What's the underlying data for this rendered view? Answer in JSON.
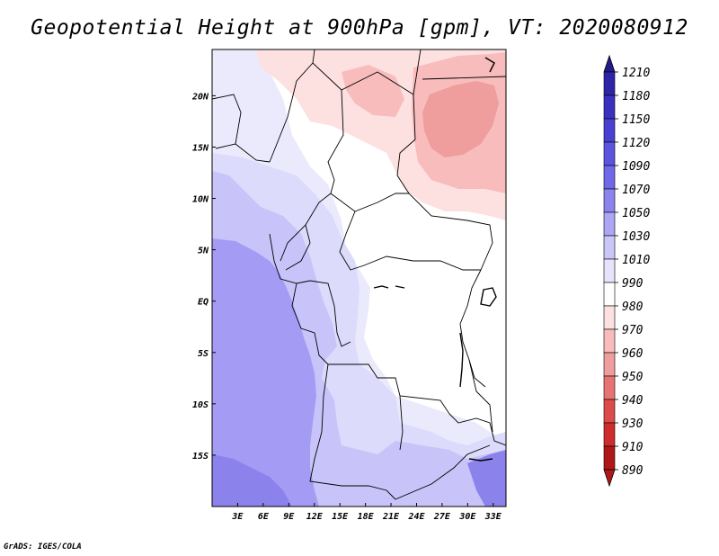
{
  "title": "Geopotential Height at 900hPa [gpm], VT: 2020080912",
  "credit": "GrADS: IGES/COLA",
  "map": {
    "x_ticks": [
      "3E",
      "6E",
      "9E",
      "12E",
      "15E",
      "18E",
      "21E",
      "24E",
      "27E",
      "30E",
      "33E"
    ],
    "y_ticks": [
      "20N",
      "15N",
      "10N",
      "5N",
      "EQ",
      "5S",
      "10S",
      "15S"
    ],
    "colors": {
      "ocean": "#a49cf4",
      "ocean_dark": "#8c82ec",
      "land_1050": "#c8c4f9",
      "land_1030": "#dcdbfb",
      "land_1010": "#ebeafc",
      "land_990": "#ffffff",
      "land_980": "#fde0e0",
      "land_970": "#f8bcbc",
      "land_960": "#ef9d9d",
      "border": "#000000"
    }
  },
  "legend": {
    "levels": [
      "1210",
      "1180",
      "1150",
      "1120",
      "1090",
      "1070",
      "1050",
      "1030",
      "1010",
      "990",
      "980",
      "970",
      "960",
      "950",
      "940",
      "930",
      "910",
      "890"
    ],
    "colors": [
      "#241a8c",
      "#2e24a8",
      "#3a30c0",
      "#4840d2",
      "#5a54e0",
      "#7068e8",
      "#8c84ee",
      "#aca6f4",
      "#cac6f8",
      "#e6e4fc",
      "#ffffff",
      "#fde0e0",
      "#f8bcbc",
      "#ef9d9d",
      "#e77474",
      "#dc4a4a",
      "#cf2c2c",
      "#b01818"
    ]
  }
}
